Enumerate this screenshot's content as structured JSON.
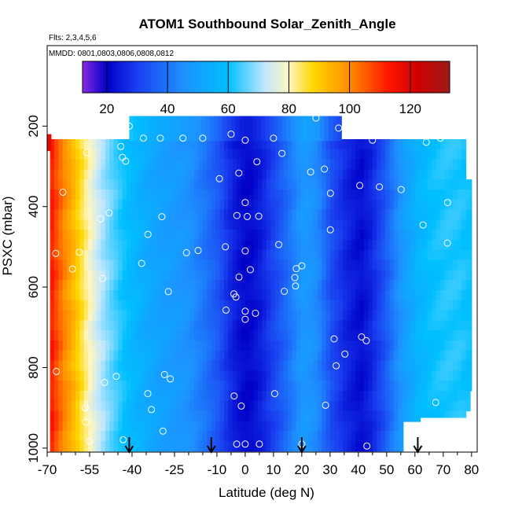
{
  "chart_data": {
    "type": "heatmap",
    "title": "ATOM1 Southbound Solar_Zenith_Angle",
    "subtitle_flights": "Flts: 2,3,4,5,6",
    "subtitle_dates": "MMDD: 0801,0803,0806,0808,0812",
    "xlabel": "Latitude (deg N)",
    "ylabel": "PSXC (mbar)",
    "xlim": [
      -70,
      82
    ],
    "ylim": [
      1010,
      0
    ],
    "x_ticks": [
      -70,
      -55,
      -40,
      -25,
      -10,
      0,
      10,
      20,
      30,
      40,
      50,
      60,
      70,
      80
    ],
    "y_ticks": [
      200,
      400,
      600,
      800,
      1000
    ],
    "colorbar": {
      "range": [
        12,
        133
      ],
      "ticks": [
        20,
        40,
        60,
        80,
        100,
        120
      ],
      "stops": [
        {
          "v": 12,
          "c": "#8a2be2"
        },
        {
          "v": 20,
          "c": "#0000c8"
        },
        {
          "v": 30,
          "c": "#1a3ff0"
        },
        {
          "v": 45,
          "c": "#1e90ff"
        },
        {
          "v": 60,
          "c": "#00bfff"
        },
        {
          "v": 72,
          "c": "#bfe6ff"
        },
        {
          "v": 80,
          "c": "#fff6c0"
        },
        {
          "v": 88,
          "c": "#ffd700"
        },
        {
          "v": 100,
          "c": "#ff8c00"
        },
        {
          "v": 113,
          "c": "#ff1500"
        },
        {
          "v": 122,
          "c": "#d00000"
        },
        {
          "v": 133,
          "c": "#a01a1a"
        }
      ]
    },
    "profile": {
      "lat": [
        -69,
        -67,
        -65,
        -63,
        -61,
        -59,
        -57,
        -55,
        -53,
        -50,
        -47,
        -44,
        -40,
        -35,
        -30,
        -25,
        -20,
        -15,
        -10,
        -7,
        -4,
        -2,
        0,
        2,
        5,
        10,
        15,
        20,
        25,
        30,
        35,
        40,
        44,
        48,
        52,
        56,
        60,
        65,
        70,
        75,
        79,
        82
      ],
      "sza": [
        112,
        106,
        101,
        97,
        92,
        87,
        82,
        78,
        74,
        69,
        65,
        61,
        57,
        53,
        50,
        48,
        45,
        40,
        34,
        28,
        24,
        22,
        21,
        22,
        25,
        32,
        40,
        48,
        44,
        32,
        26,
        22,
        26,
        33,
        42,
        50,
        56,
        60,
        62,
        62,
        60,
        58
      ]
    },
    "arrows_lat": [
      -41,
      -12,
      20,
      61
    ]
  }
}
